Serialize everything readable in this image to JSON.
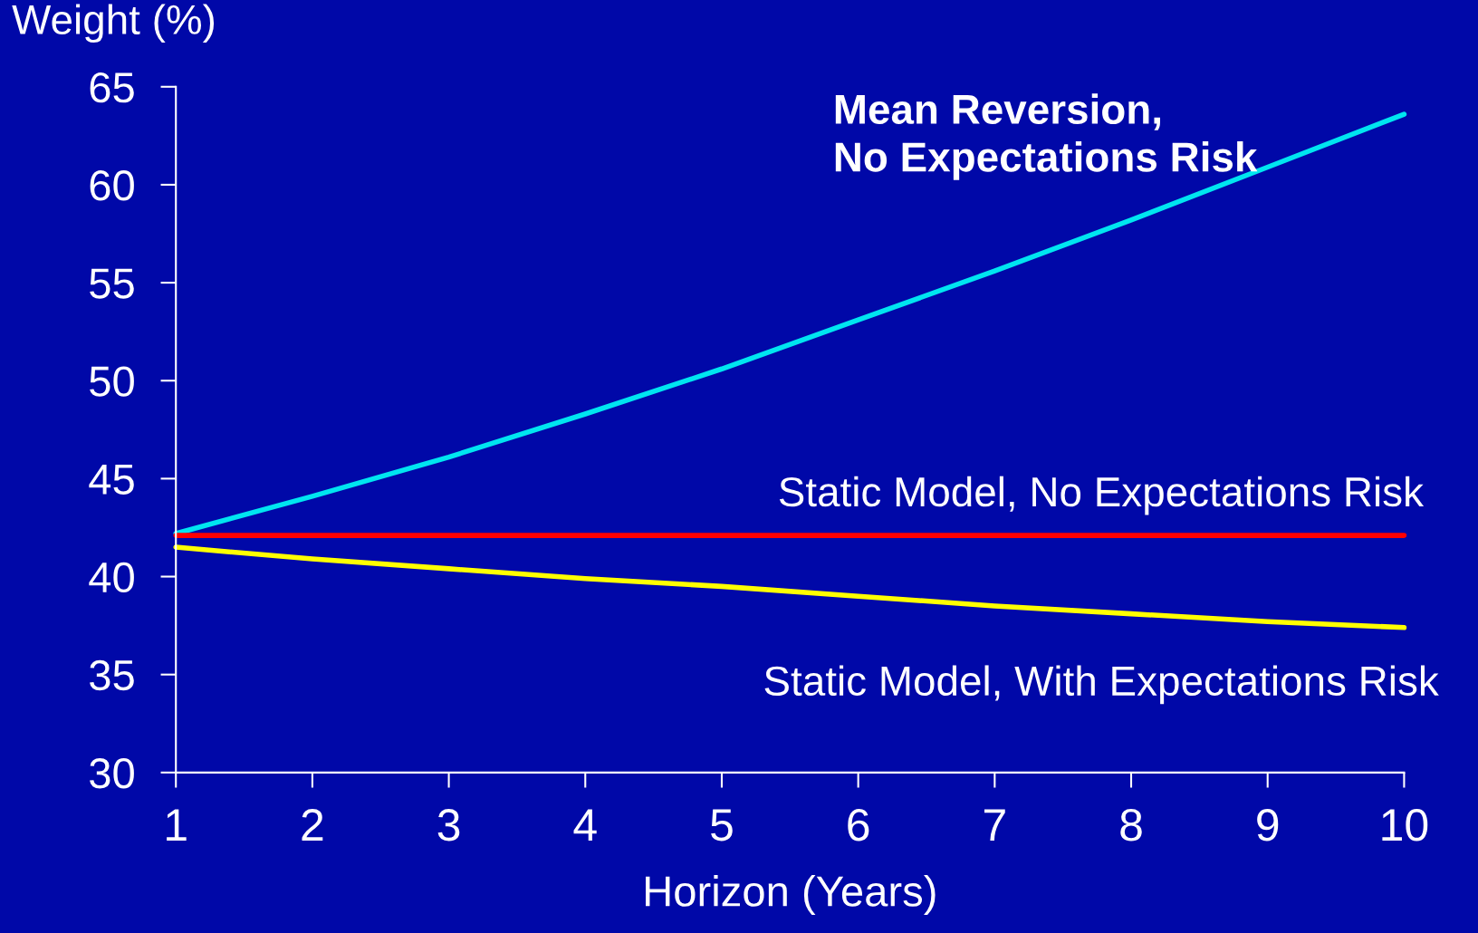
{
  "chart_data": {
    "type": "line",
    "xlabel": "Horizon (Years)",
    "ylabel": "Weight (%)",
    "x": [
      1,
      2,
      3,
      4,
      5,
      6,
      7,
      8,
      9,
      10
    ],
    "series": [
      {
        "name": "Mean Reversion,\nNo Expectations Risk",
        "color": "#00e5f0",
        "values": [
          42.2,
          44.1,
          46.1,
          48.3,
          50.6,
          53.1,
          55.6,
          58.2,
          60.9,
          63.6
        ]
      },
      {
        "name": "Static Model, No Expectations Risk",
        "color": "#ff0000",
        "values": [
          42.1,
          42.1,
          42.1,
          42.1,
          42.1,
          42.1,
          42.1,
          42.1,
          42.1,
          42.1
        ]
      },
      {
        "name": "Static Model, With Expectations Risk",
        "color": "#ffff00",
        "values": [
          41.5,
          40.9,
          40.4,
          39.9,
          39.5,
          39.0,
          38.5,
          38.1,
          37.7,
          37.4
        ]
      }
    ],
    "xlim": [
      1,
      10
    ],
    "xticks": [
      1,
      2,
      3,
      4,
      5,
      6,
      7,
      8,
      9,
      10
    ],
    "ylim": [
      30,
      65
    ],
    "yticks": [
      30,
      35,
      40,
      45,
      50,
      55,
      60,
      65
    ],
    "grid": false,
    "legend": false,
    "marker": "none",
    "line_style": "solid"
  }
}
